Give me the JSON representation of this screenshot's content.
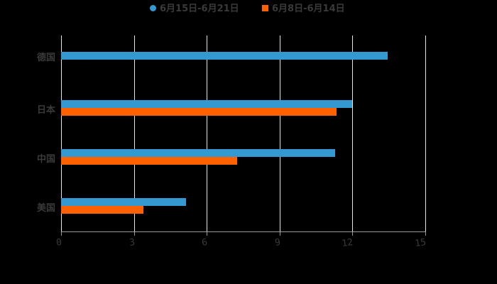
{
  "chart_data": {
    "type": "bar",
    "orientation": "horizontal",
    "title": "",
    "categories": [
      "德国",
      "日本",
      "中国",
      "美国"
    ],
    "series": [
      {
        "name": "6月15日-6月21日",
        "color": "#3498d1",
        "values": [
          13.45,
          12.0,
          11.3,
          5.15
        ]
      },
      {
        "name": "6月8日-6月14日",
        "color": "#ff6100",
        "values": [
          null,
          11.35,
          7.25,
          3.4
        ]
      }
    ],
    "xlabel": "",
    "ylabel": "",
    "xlim": [
      0,
      15
    ],
    "xticks": [
      "0",
      "3",
      "6",
      "9",
      "12",
      "15"
    ],
    "grid": true,
    "legend_position": "top"
  },
  "legend": [
    {
      "label": "6月15日-6月21日",
      "color": "#3498d1"
    },
    {
      "label": "6月8日-6月14日",
      "color": "#ff6100"
    }
  ]
}
